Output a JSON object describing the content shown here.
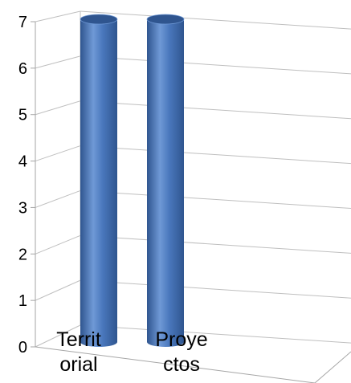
{
  "chart_data": {
    "type": "bar",
    "style": "3d-cylinder",
    "categories": [
      "Territorial",
      "Proyectos"
    ],
    "category_display": [
      [
        "Territ",
        "orial"
      ],
      [
        "Proye",
        "ctos"
      ]
    ],
    "values": [
      7,
      7
    ],
    "ylim": [
      0,
      7
    ],
    "y_ticks": [
      "0",
      "1",
      "2",
      "3",
      "4",
      "5",
      "6",
      "7"
    ],
    "grid": true,
    "legend": "none",
    "title": "",
    "xlabel": "",
    "ylabel": ""
  },
  "colors": {
    "bar": "#4a78bd",
    "bar_dark": "#2f558f",
    "bar_light": "#6f99d6",
    "grid": "#bfbfbf",
    "axis": "#a6a6a6"
  }
}
